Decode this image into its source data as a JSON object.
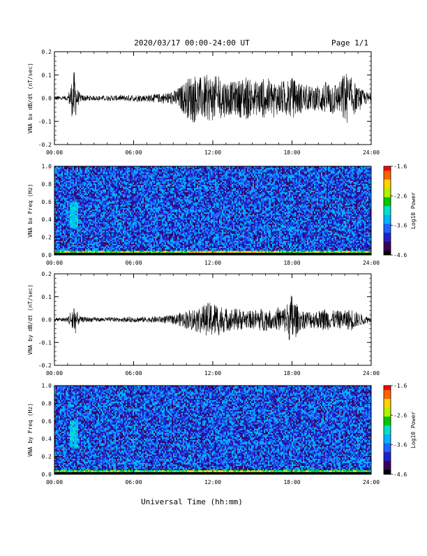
{
  "header": {
    "title": "2020/03/17  00:00-24:00 UT",
    "page": "Page 1/1"
  },
  "footer": {
    "xlabel": "Universal Time (hh:mm)"
  },
  "colors": {
    "trace": "#000000",
    "colormap": [
      "#000000",
      "#3a005a",
      "#2020c8",
      "#1e64ff",
      "#00b4ff",
      "#00e1c8",
      "#00c800",
      "#b4f000",
      "#ffd200",
      "#ff6400",
      "#ff0000"
    ]
  },
  "chart_data": [
    {
      "type": "line",
      "ylabel": "VNA bx dB/dt (nT/sec)",
      "ylim": [
        -0.2,
        0.2
      ],
      "yticks": [
        -0.2,
        -0.1,
        0.0,
        0.1,
        0.2
      ],
      "ytick_labels": [
        "-0.2",
        "-0.1",
        "0.0",
        "0.1",
        "0.2"
      ],
      "xlim": [
        "00:00",
        "24:00"
      ],
      "xtick_labels": [
        "00:00",
        "06:00",
        "12:00",
        "18:00",
        "24:00"
      ],
      "series": [
        {
          "x": [
            "00:00",
            "01:00",
            "01:30",
            "01:45",
            "02:00",
            "03:00",
            "04:00",
            "05:00",
            "06:00",
            "07:00",
            "08:00",
            "09:00",
            "09:30",
            "10:00",
            "10:30",
            "11:00",
            "11:30",
            "12:00",
            "12:30",
            "13:00",
            "13:30",
            "14:00",
            "14:30",
            "15:00",
            "15:30",
            "16:00",
            "16:30",
            "17:00",
            "17:30",
            "18:00",
            "18:30",
            "19:00",
            "19:30",
            "20:00",
            "20:30",
            "21:00",
            "21:30",
            "22:00",
            "22:30",
            "23:00",
            "23:30",
            "24:00"
          ],
          "envelope": [
            0.01,
            0.01,
            0.12,
            0.04,
            0.015,
            0.01,
            0.012,
            0.012,
            0.015,
            0.015,
            0.02,
            0.03,
            0.05,
            0.08,
            0.11,
            0.09,
            0.1,
            0.1,
            0.09,
            0.08,
            0.07,
            0.08,
            0.1,
            0.07,
            0.08,
            0.09,
            0.08,
            0.07,
            0.08,
            0.09,
            0.07,
            0.06,
            0.05,
            0.06,
            0.07,
            0.08,
            0.06,
            0.12,
            0.09,
            0.05,
            0.03,
            0.02
          ]
        }
      ]
    },
    {
      "type": "heatmap",
      "ylabel": "VNA bx Freq (Hz)",
      "colorbar_label": "Log10 Power",
      "colorbar_tick_labels": [
        "-1.6",
        "-2.6",
        "-3.6",
        "-4.6"
      ],
      "clim": [
        -4.6,
        -1.6
      ],
      "ylim": [
        0.0,
        1.0
      ],
      "ytick_labels": [
        "0.0",
        "0.2",
        "0.4",
        "0.6",
        "0.8",
        "1.0"
      ],
      "xtick_labels": [
        "00:00",
        "06:00",
        "12:00",
        "18:00",
        "24:00"
      ],
      "background_level": -3.8,
      "low_frequency_band": {
        "freq_max": 0.05,
        "level": -2.6
      },
      "features": [
        {
          "time": "01:30",
          "freq_range": [
            0.3,
            0.6
          ],
          "level": -3.3
        }
      ]
    },
    {
      "type": "line",
      "ylabel": "VNA by dB/dt (nT/sec)",
      "ylim": [
        -0.2,
        0.2
      ],
      "yticks": [
        -0.2,
        -0.1,
        0.0,
        0.1,
        0.2
      ],
      "ytick_labels": [
        "-0.2",
        "-0.1",
        "0.0",
        "0.1",
        "0.2"
      ],
      "xlim": [
        "00:00",
        "24:00"
      ],
      "xtick_labels": [
        "00:00",
        "06:00",
        "12:00",
        "18:00",
        "24:00"
      ],
      "series": [
        {
          "x": [
            "00:00",
            "01:00",
            "01:30",
            "01:45",
            "02:00",
            "03:00",
            "04:00",
            "05:00",
            "06:00",
            "07:00",
            "08:00",
            "09:00",
            "09:30",
            "10:00",
            "10:30",
            "11:00",
            "11:30",
            "12:00",
            "12:30",
            "13:00",
            "13:30",
            "14:00",
            "14:30",
            "15:00",
            "15:30",
            "16:00",
            "16:30",
            "17:00",
            "17:30",
            "18:00",
            "18:30",
            "19:00",
            "19:30",
            "20:00",
            "20:30",
            "21:00",
            "21:30",
            "22:00",
            "22:30",
            "23:00",
            "23:30",
            "24:00"
          ],
          "envelope": [
            0.008,
            0.01,
            0.08,
            0.03,
            0.012,
            0.01,
            0.01,
            0.01,
            0.012,
            0.012,
            0.015,
            0.02,
            0.03,
            0.04,
            0.05,
            0.06,
            0.07,
            0.08,
            0.07,
            0.05,
            0.05,
            0.05,
            0.04,
            0.04,
            0.05,
            0.05,
            0.04,
            0.05,
            0.06,
            0.12,
            0.05,
            0.04,
            0.04,
            0.04,
            0.05,
            0.04,
            0.04,
            0.04,
            0.05,
            0.03,
            0.02,
            0.01
          ]
        }
      ]
    },
    {
      "type": "heatmap",
      "ylabel": "VNA by Freq (Hz)",
      "colorbar_label": "Log10 Power",
      "colorbar_tick_labels": [
        "-1.6",
        "-2.6",
        "-3.6",
        "-4.6"
      ],
      "clim": [
        -4.6,
        -1.6
      ],
      "ylim": [
        0.0,
        1.0
      ],
      "ytick_labels": [
        "0.0",
        "0.2",
        "0.4",
        "0.6",
        "0.8",
        "1.0"
      ],
      "xtick_labels": [
        "00:00",
        "06:00",
        "12:00",
        "18:00",
        "24:00"
      ],
      "background_level": -3.8,
      "low_frequency_band": {
        "freq_max": 0.05,
        "level": -2.8
      },
      "features": [
        {
          "time": "01:30",
          "freq_range": [
            0.3,
            0.6
          ],
          "level": -3.3
        }
      ]
    }
  ]
}
